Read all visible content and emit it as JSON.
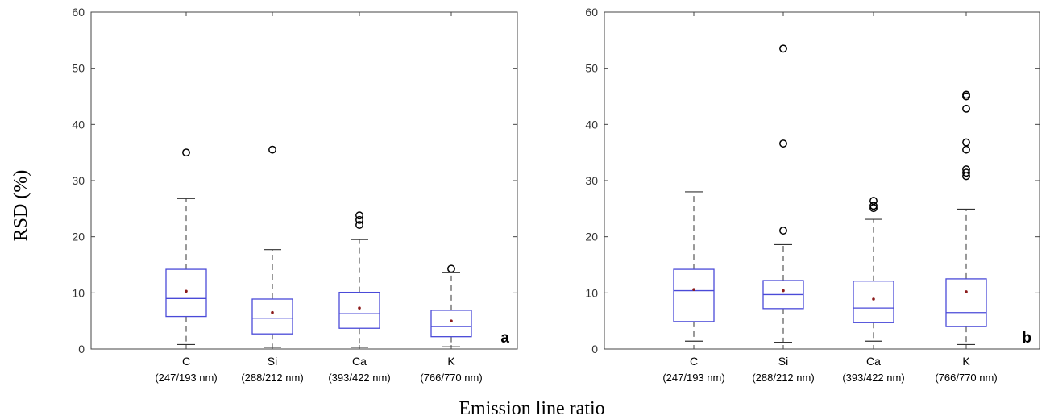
{
  "chart_data": {
    "type": "box",
    "ylabel": "RSD (%)",
    "xlabel": "Emission line ratio",
    "ylim": [
      0,
      60
    ],
    "yticks": [
      0,
      10,
      20,
      30,
      40,
      50,
      60
    ],
    "categories": [
      {
        "name": "C",
        "sub": "(247/193 nm)"
      },
      {
        "name": "Si",
        "sub": "(288/212 nm)"
      },
      {
        "name": "Ca",
        "sub": "(393/422 nm)"
      },
      {
        "name": "K",
        "sub": "(766/770 nm)"
      }
    ],
    "colors": {
      "box": "#4a4ad8",
      "mean": "#8b1a1a",
      "whisker": "#333333",
      "outlier": "#000000"
    },
    "panels": [
      {
        "label": "a",
        "boxes": [
          {
            "whisker_low": 0.8,
            "q1": 5.8,
            "median": 9.0,
            "q3": 14.2,
            "whisker_high": 26.8,
            "mean": 10.3,
            "outliers": [
              35.0
            ]
          },
          {
            "whisker_low": 0.3,
            "q1": 2.7,
            "median": 5.5,
            "q3": 8.9,
            "whisker_high": 17.7,
            "mean": 6.5,
            "outliers": [
              35.5
            ]
          },
          {
            "whisker_low": 0.3,
            "q1": 3.7,
            "median": 6.3,
            "q3": 10.1,
            "whisker_high": 19.5,
            "mean": 7.3,
            "outliers": [
              22.1,
              23.0,
              23.8
            ]
          },
          {
            "whisker_low": 0.4,
            "q1": 2.2,
            "median": 4.0,
            "q3": 6.9,
            "whisker_high": 13.6,
            "mean": 5.0,
            "outliers": [
              14.3
            ]
          }
        ]
      },
      {
        "label": "b",
        "boxes": [
          {
            "whisker_low": 1.4,
            "q1": 4.9,
            "median": 10.4,
            "q3": 14.2,
            "whisker_high": 28.0,
            "mean": 10.6,
            "outliers": []
          },
          {
            "whisker_low": 1.2,
            "q1": 7.2,
            "median": 9.7,
            "q3": 12.2,
            "whisker_high": 18.6,
            "mean": 10.4,
            "outliers": [
              21.1,
              36.6,
              53.5
            ]
          },
          {
            "whisker_low": 1.4,
            "q1": 4.7,
            "median": 7.3,
            "q3": 12.1,
            "whisker_high": 23.1,
            "mean": 8.9,
            "outliers": [
              25.1,
              25.5,
              26.4
            ]
          },
          {
            "whisker_low": 0.8,
            "q1": 4.0,
            "median": 6.5,
            "q3": 12.5,
            "whisker_high": 24.9,
            "mean": 10.2,
            "outliers": [
              30.8,
              31.4,
              32.0,
              35.5,
              36.8,
              42.8,
              45.0,
              45.3
            ]
          }
        ]
      }
    ]
  }
}
